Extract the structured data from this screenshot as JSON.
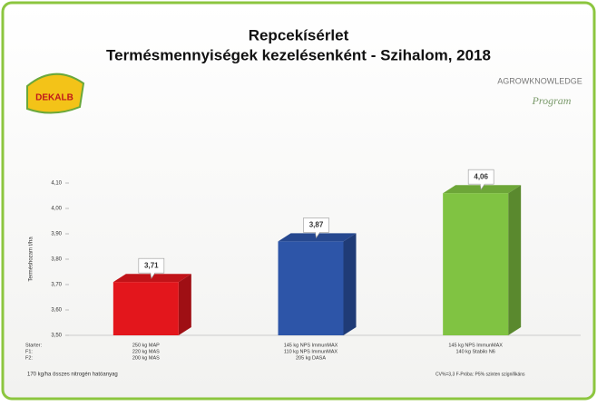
{
  "chart_data": {
    "type": "bar3d",
    "title": "Repcekísérlet",
    "subtitle": "Termésmennyiségek kezelésenként - Szihalom, 2018",
    "logo_left": "DEKALB",
    "logo_right": "AGROWKNOWLEDGE",
    "logo_right_sub": "Program",
    "y_axis_label": "Terméshozam t/ha",
    "row_labels": [
      "Starter:",
      "F1:",
      "F2:"
    ],
    "categories": [
      [
        "250 kg MAP",
        "220 kg MAS",
        "200 kg MAS"
      ],
      [
        "145 kg NPS ImmunMAX",
        "110 kg NPS ImmunMAX",
        "205 kg DASA"
      ],
      [
        "145 kg NPS ImmunMAX",
        "140 kg Stabilo N6"
      ]
    ],
    "values": [
      3.71,
      3.87,
      4.06
    ],
    "value_labels": [
      "3,71",
      "3,87",
      "4,06"
    ],
    "colors": [
      "#e3161c",
      "#2d55a8",
      "#80c342"
    ],
    "ylim": [
      3.5,
      4.1
    ],
    "yticks": [
      {
        "value": 3.5,
        "label": "3,50"
      },
      {
        "value": 3.6,
        "label": "3,60"
      },
      {
        "value": 3.7,
        "label": "3,70"
      },
      {
        "value": 3.8,
        "label": "3,80"
      },
      {
        "value": 3.9,
        "label": "3,90"
      },
      {
        "value": 4.0,
        "label": "4,00"
      },
      {
        "value": 4.1,
        "label": "4,10"
      }
    ],
    "footer_left": "170 kg/ha összes nitrogén hatóanyag",
    "footer_right": "CV%=3,3  F-Próba: P5% szinten szignifikáns"
  }
}
